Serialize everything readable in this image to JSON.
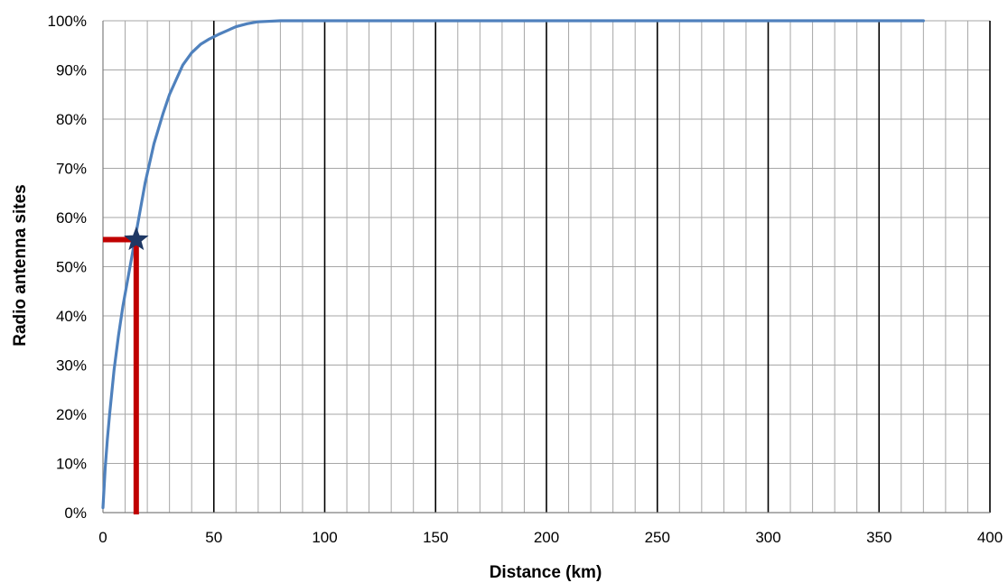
{
  "chart_data": {
    "type": "line",
    "xlabel": "Distance (km)",
    "ylabel": "Radio antenna sites",
    "xlim": [
      0,
      400
    ],
    "ylim": [
      0,
      1
    ],
    "x_ticks": [
      0,
      50,
      100,
      150,
      200,
      250,
      300,
      350,
      400
    ],
    "x_tick_labels": [
      "0",
      "50",
      "100",
      "150",
      "200",
      "250",
      "300",
      "350",
      "400"
    ],
    "y_ticks": [
      0,
      0.1,
      0.2,
      0.3,
      0.4,
      0.5,
      0.6,
      0.7,
      0.8,
      0.9,
      1.0
    ],
    "y_tick_labels": [
      "0%",
      "10%",
      "20%",
      "30%",
      "40%",
      "50%",
      "60%",
      "70%",
      "80%",
      "90%",
      "100%"
    ],
    "major_grid_x_step": 50,
    "minor_grid_x_step": 10,
    "grid": true,
    "legend": false,
    "series": [
      {
        "color": "#4f81bd",
        "x": [
          0,
          1,
          2,
          3,
          5,
          7,
          9,
          11,
          13,
          15,
          17,
          19,
          21,
          23,
          25,
          27,
          30,
          33,
          36,
          40,
          44,
          48,
          52,
          56,
          60,
          65,
          70,
          75,
          80,
          100,
          150,
          200,
          250,
          300,
          350,
          370
        ],
        "y": [
          0.01,
          0.09,
          0.15,
          0.2,
          0.29,
          0.36,
          0.42,
          0.47,
          0.52,
          0.57,
          0.62,
          0.67,
          0.71,
          0.75,
          0.78,
          0.81,
          0.85,
          0.88,
          0.91,
          0.935,
          0.952,
          0.963,
          0.972,
          0.98,
          0.988,
          0.994,
          0.998,
          0.999,
          1.0,
          1.0,
          1.0,
          1.0,
          1.0,
          1.0,
          1.0,
          1.0
        ]
      }
    ],
    "reference_point": {
      "x": 15,
      "y": 0.555
    },
    "reference_line_color": "#c00000",
    "marker_color": "#1f3864"
  }
}
